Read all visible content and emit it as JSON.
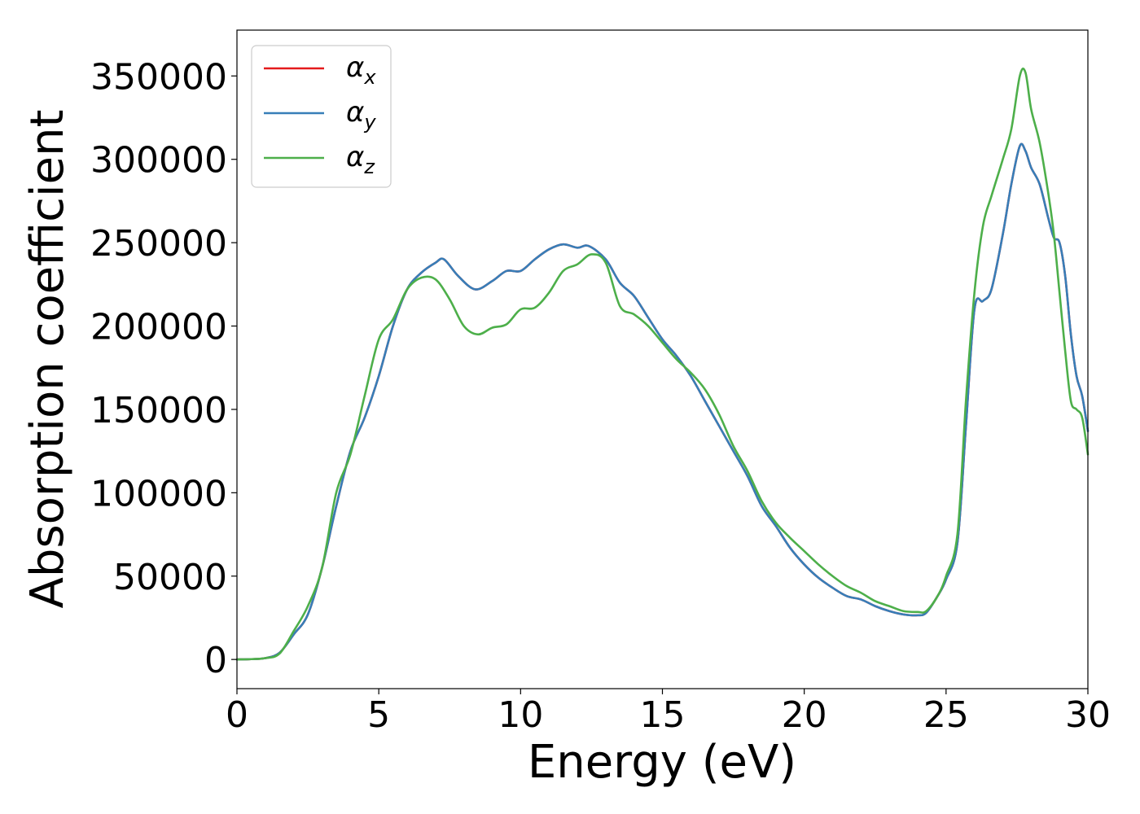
{
  "chart_data": {
    "type": "line",
    "title": "",
    "xlabel": "Energy (eV)",
    "ylabel": "Absorption coefficient",
    "xlim": [
      0,
      30
    ],
    "ylim": [
      -17500,
      377500
    ],
    "xticks": [
      0,
      5,
      10,
      15,
      20,
      25,
      30
    ],
    "yticks": [
      0,
      50000,
      100000,
      150000,
      200000,
      250000,
      300000,
      350000
    ],
    "grid": false,
    "legend_position": "top-left",
    "series": [
      {
        "name": "α",
        "subscript": "x",
        "color": "#e41a1c",
        "points": [
          [
            0,
            0
          ],
          [
            0.5,
            200
          ],
          [
            1,
            800
          ],
          [
            1.5,
            4000
          ],
          [
            2,
            15000
          ],
          [
            2.5,
            27000
          ],
          [
            3,
            55000
          ],
          [
            3.5,
            92000
          ],
          [
            4,
            125000
          ],
          [
            4.5,
            145000
          ],
          [
            5,
            170000
          ],
          [
            5.5,
            200000
          ],
          [
            6,
            222000
          ],
          [
            6.5,
            232000
          ],
          [
            7,
            238000
          ],
          [
            7.3,
            240000
          ],
          [
            7.8,
            230000
          ],
          [
            8.4,
            222000
          ],
          [
            9,
            227000
          ],
          [
            9.5,
            233000
          ],
          [
            10,
            233000
          ],
          [
            10.5,
            240000
          ],
          [
            11,
            246000
          ],
          [
            11.5,
            249000
          ],
          [
            12,
            247000
          ],
          [
            12.4,
            248000
          ],
          [
            13,
            240000
          ],
          [
            13.5,
            226000
          ],
          [
            14,
            218000
          ],
          [
            14.5,
            205000
          ],
          [
            15,
            192000
          ],
          [
            15.5,
            182000
          ],
          [
            16,
            170000
          ],
          [
            16.5,
            155000
          ],
          [
            17,
            140000
          ],
          [
            17.5,
            125000
          ],
          [
            18,
            110000
          ],
          [
            18.5,
            92000
          ],
          [
            19,
            80000
          ],
          [
            19.5,
            67000
          ],
          [
            20,
            57000
          ],
          [
            20.5,
            49000
          ],
          [
            21,
            43000
          ],
          [
            21.5,
            38000
          ],
          [
            22,
            36000
          ],
          [
            22.5,
            32000
          ],
          [
            23,
            29000
          ],
          [
            23.5,
            27000
          ],
          [
            24,
            26500
          ],
          [
            24.3,
            28000
          ],
          [
            24.7,
            38000
          ],
          [
            25,
            48000
          ],
          [
            25.4,
            70000
          ],
          [
            25.7,
            140000
          ],
          [
            26,
            210000
          ],
          [
            26.3,
            215000
          ],
          [
            26.6,
            222000
          ],
          [
            27,
            255000
          ],
          [
            27.3,
            285000
          ],
          [
            27.6,
            308000
          ],
          [
            27.8,
            305000
          ],
          [
            28,
            295000
          ],
          [
            28.3,
            285000
          ],
          [
            28.6,
            265000
          ],
          [
            28.8,
            253000
          ],
          [
            29,
            250000
          ],
          [
            29.2,
            230000
          ],
          [
            29.4,
            195000
          ],
          [
            29.6,
            170000
          ],
          [
            29.8,
            158000
          ],
          [
            30,
            137000
          ]
        ]
      },
      {
        "name": "α",
        "subscript": "y",
        "color": "#377eb8",
        "points": [
          [
            0,
            0
          ],
          [
            0.5,
            200
          ],
          [
            1,
            800
          ],
          [
            1.5,
            4000
          ],
          [
            2,
            15000
          ],
          [
            2.5,
            27000
          ],
          [
            3,
            55000
          ],
          [
            3.5,
            92000
          ],
          [
            4,
            125000
          ],
          [
            4.5,
            145000
          ],
          [
            5,
            170000
          ],
          [
            5.5,
            200000
          ],
          [
            6,
            222000
          ],
          [
            6.5,
            232000
          ],
          [
            7,
            238000
          ],
          [
            7.3,
            240000
          ],
          [
            7.8,
            230000
          ],
          [
            8.4,
            222000
          ],
          [
            9,
            227000
          ],
          [
            9.5,
            233000
          ],
          [
            10,
            233000
          ],
          [
            10.5,
            240000
          ],
          [
            11,
            246000
          ],
          [
            11.5,
            249000
          ],
          [
            12,
            247000
          ],
          [
            12.4,
            248000
          ],
          [
            13,
            240000
          ],
          [
            13.5,
            226000
          ],
          [
            14,
            218000
          ],
          [
            14.5,
            205000
          ],
          [
            15,
            192000
          ],
          [
            15.5,
            182000
          ],
          [
            16,
            170000
          ],
          [
            16.5,
            155000
          ],
          [
            17,
            140000
          ],
          [
            17.5,
            125000
          ],
          [
            18,
            110000
          ],
          [
            18.5,
            92000
          ],
          [
            19,
            80000
          ],
          [
            19.5,
            67000
          ],
          [
            20,
            57000
          ],
          [
            20.5,
            49000
          ],
          [
            21,
            43000
          ],
          [
            21.5,
            38000
          ],
          [
            22,
            36000
          ],
          [
            22.5,
            32000
          ],
          [
            23,
            29000
          ],
          [
            23.5,
            27000
          ],
          [
            24,
            26500
          ],
          [
            24.3,
            28000
          ],
          [
            24.7,
            38000
          ],
          [
            25,
            48000
          ],
          [
            25.4,
            70000
          ],
          [
            25.7,
            140000
          ],
          [
            26,
            210000
          ],
          [
            26.3,
            215000
          ],
          [
            26.6,
            222000
          ],
          [
            27,
            255000
          ],
          [
            27.3,
            285000
          ],
          [
            27.6,
            308000
          ],
          [
            27.8,
            305000
          ],
          [
            28,
            295000
          ],
          [
            28.3,
            285000
          ],
          [
            28.6,
            265000
          ],
          [
            28.8,
            253000
          ],
          [
            29,
            250000
          ],
          [
            29.2,
            230000
          ],
          [
            29.4,
            195000
          ],
          [
            29.6,
            170000
          ],
          [
            29.8,
            158000
          ],
          [
            30,
            137000
          ]
        ]
      },
      {
        "name": "α",
        "subscript": "z",
        "color": "#4daf4a",
        "points": [
          [
            0,
            0
          ],
          [
            0.5,
            200
          ],
          [
            1,
            800
          ],
          [
            1.5,
            3500
          ],
          [
            2,
            17000
          ],
          [
            2.5,
            32000
          ],
          [
            3,
            55000
          ],
          [
            3.5,
            100000
          ],
          [
            4,
            123000
          ],
          [
            4.5,
            158000
          ],
          [
            5,
            192000
          ],
          [
            5.5,
            204000
          ],
          [
            6,
            222000
          ],
          [
            6.5,
            229000
          ],
          [
            7,
            228000
          ],
          [
            7.5,
            216000
          ],
          [
            8,
            200000
          ],
          [
            8.5,
            195000
          ],
          [
            9,
            199000
          ],
          [
            9.5,
            201000
          ],
          [
            10,
            210000
          ],
          [
            10.5,
            211000
          ],
          [
            11,
            220000
          ],
          [
            11.5,
            233000
          ],
          [
            12,
            237000
          ],
          [
            12.5,
            243000
          ],
          [
            13,
            238000
          ],
          [
            13.5,
            212000
          ],
          [
            14,
            207000
          ],
          [
            14.5,
            200000
          ],
          [
            15,
            190000
          ],
          [
            15.5,
            180000
          ],
          [
            16,
            172000
          ],
          [
            16.5,
            162000
          ],
          [
            17,
            147000
          ],
          [
            17.5,
            128000
          ],
          [
            18,
            113000
          ],
          [
            18.5,
            95000
          ],
          [
            19,
            82000
          ],
          [
            19.5,
            73000
          ],
          [
            20,
            65000
          ],
          [
            20.5,
            57000
          ],
          [
            21,
            50000
          ],
          [
            21.5,
            44000
          ],
          [
            22,
            40000
          ],
          [
            22.5,
            35000
          ],
          [
            23,
            32000
          ],
          [
            23.5,
            29000
          ],
          [
            24,
            28500
          ],
          [
            24.3,
            29000
          ],
          [
            24.7,
            38000
          ],
          [
            25,
            50000
          ],
          [
            25.4,
            75000
          ],
          [
            25.7,
            155000
          ],
          [
            26,
            220000
          ],
          [
            26.3,
            260000
          ],
          [
            26.6,
            278000
          ],
          [
            27,
            300000
          ],
          [
            27.3,
            318000
          ],
          [
            27.6,
            350000
          ],
          [
            27.8,
            352000
          ],
          [
            28,
            330000
          ],
          [
            28.3,
            310000
          ],
          [
            28.6,
            280000
          ],
          [
            28.8,
            255000
          ],
          [
            29,
            220000
          ],
          [
            29.2,
            185000
          ],
          [
            29.4,
            155000
          ],
          [
            29.6,
            150000
          ],
          [
            29.8,
            145000
          ],
          [
            30,
            123000
          ]
        ]
      }
    ]
  }
}
